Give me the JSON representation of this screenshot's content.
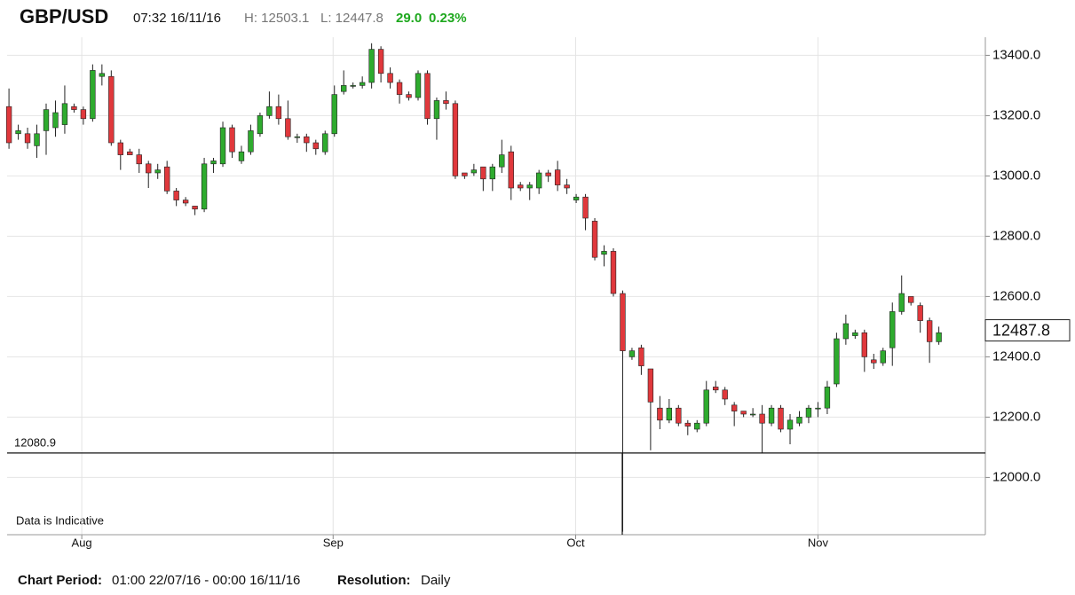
{
  "header": {
    "symbol": "GBP/USD",
    "time": "07:32 16/11/16",
    "high": "H: 12503.1",
    "low": "L: 12447.8",
    "change": "29.0",
    "change_pct": "0.23%"
  },
  "chart_data": {
    "type": "candlestick",
    "open": [
      13230,
      13140,
      13140,
      13100,
      13150,
      13160,
      13170,
      13230,
      13220,
      13190,
      13330,
      13330,
      13110,
      13080,
      13070,
      13040,
      13010,
      13030,
      12950,
      12920,
      12900,
      12890,
      13040,
      13040,
      13160,
      13050,
      13080,
      13140,
      13200,
      13230,
      13190,
      13130,
      13130,
      13110,
      13080,
      13140,
      13280,
      13300,
      13300,
      13310,
      13420,
      13340,
      13310,
      13270,
      13260,
      13340,
      13190,
      13250,
      13240,
      13010,
      13010,
      13030,
      12990,
      13030,
      13080,
      12970,
      12960,
      12960,
      13010,
      13020,
      12970,
      12920,
      12930,
      12850,
      12740,
      12750,
      12610,
      12400,
      12430,
      12360,
      12230,
      12190,
      12230,
      12180,
      12160,
      12180,
      12300,
      12290,
      12240,
      12220,
      12210,
      12210,
      12180,
      12230,
      12160,
      12180,
      12200,
      12230,
      12230,
      12310,
      12460,
      12470,
      12480,
      12390,
      12380,
      12430,
      12550,
      12600,
      12570,
      12520,
      12450
    ],
    "high": [
      13290,
      13170,
      13160,
      13170,
      13240,
      13250,
      13300,
      13240,
      13230,
      13370,
      13370,
      13350,
      13120,
      13090,
      13090,
      13050,
      13040,
      13050,
      12960,
      12930,
      12900,
      13060,
      13060,
      13180,
      13170,
      13100,
      13170,
      13210,
      13280,
      13270,
      13250,
      13140,
      13140,
      13120,
      13150,
      13300,
      13350,
      13310,
      13330,
      13440,
      13430,
      13360,
      13320,
      13280,
      13350,
      13350,
      13260,
      13280,
      13250,
      13010,
      13040,
      13030,
      13040,
      13120,
      13100,
      12980,
      12980,
      13020,
      13020,
      13050,
      12990,
      12940,
      12940,
      12860,
      12770,
      12760,
      12620,
      12430,
      12440,
      12360,
      12270,
      12260,
      12240,
      12190,
      12190,
      12320,
      12320,
      12300,
      12250,
      12220,
      12230,
      12240,
      12240,
      12240,
      12210,
      12220,
      12240,
      12250,
      12320,
      12480,
      12540,
      12490,
      12490,
      12410,
      12430,
      12580,
      12670,
      12600,
      12580,
      12530,
      12500
    ],
    "low": [
      13090,
      13120,
      13090,
      13060,
      13070,
      13130,
      13140,
      13210,
      13170,
      13180,
      13300,
      13100,
      13020,
      13070,
      13010,
      12960,
      12990,
      12940,
      12900,
      12900,
      12870,
      12880,
      13010,
      13030,
      13060,
      13040,
      13070,
      13130,
      13190,
      13170,
      13120,
      13110,
      13080,
      13070,
      13070,
      13130,
      13270,
      13290,
      13290,
      13290,
      13310,
      13290,
      13240,
      13250,
      13250,
      13170,
      13120,
      13220,
      12990,
      12990,
      13000,
      12950,
      12950,
      13010,
      12920,
      12950,
      12920,
      12940,
      12980,
      12950,
      12940,
      12910,
      12820,
      12720,
      12700,
      12600,
      11820,
      12390,
      12340,
      12090,
      12160,
      12180,
      12170,
      12140,
      12150,
      12170,
      12280,
      12240,
      12170,
      12200,
      12200,
      12080,
      12170,
      12150,
      12110,
      12170,
      12180,
      12200,
      12210,
      12300,
      12440,
      12460,
      12350,
      12360,
      12370,
      12370,
      12540,
      12570,
      12480,
      12380,
      12440
    ],
    "close": [
      13110,
      13150,
      13110,
      13140,
      13220,
      13210,
      13240,
      13220,
      13190,
      13350,
      13340,
      13110,
      13070,
      13070,
      13040,
      13010,
      13020,
      12950,
      12920,
      12910,
      12890,
      13040,
      13050,
      13160,
      13080,
      13080,
      13150,
      13200,
      13230,
      13190,
      13130,
      13130,
      13110,
      13090,
      13140,
      13270,
      13300,
      13300,
      13310,
      13420,
      13340,
      13310,
      13270,
      13260,
      13340,
      13190,
      13250,
      13240,
      13000,
      13000,
      13020,
      12990,
      13030,
      13070,
      12960,
      12960,
      12970,
      13010,
      13000,
      12970,
      12960,
      12930,
      12860,
      12730,
      12750,
      12610,
      12420,
      12420,
      12370,
      12250,
      12190,
      12230,
      12180,
      12170,
      12180,
      12290,
      12290,
      12260,
      12220,
      12210,
      12210,
      12180,
      12230,
      12160,
      12190,
      12200,
      12230,
      12230,
      12300,
      12460,
      12510,
      12480,
      12400,
      12380,
      12420,
      12550,
      12610,
      12580,
      12520,
      12450,
      12480
    ],
    "up_color": "#2eab2e",
    "down_color": "#e0383c",
    "xlim": [
      -0.2,
      105
    ],
    "xticks": [
      {
        "value": 7.83,
        "label": "Aug"
      },
      {
        "value": 34.86,
        "label": "Sep"
      },
      {
        "value": 60.94,
        "label": "Oct"
      },
      {
        "value": 87.0,
        "label": "Nov"
      }
    ],
    "ylim": [
      11810,
      13460
    ],
    "yticks": [
      {
        "value": 12000,
        "label": "12000.0"
      },
      {
        "value": 12200,
        "label": "12200.0"
      },
      {
        "value": 12400,
        "label": "12400.0"
      },
      {
        "value": 12600,
        "label": "12600.0"
      },
      {
        "value": 12800,
        "label": "12800.0"
      },
      {
        "value": 13000,
        "label": "13000.0"
      },
      {
        "value": 13200,
        "label": "13200.0"
      },
      {
        "value": 13400,
        "label": "13400.0"
      }
    ],
    "grid": true,
    "crosshair": {
      "value": 12080.9,
      "label": "12080.9"
    },
    "last_price": 12487.8,
    "annotation": "Data is Indicative"
  },
  "footer": {
    "period_label": "Chart Period:",
    "period": "01:00 22/07/16 - 00:00 16/11/16",
    "resolution_label": "Resolution:",
    "resolution": "Daily"
  }
}
